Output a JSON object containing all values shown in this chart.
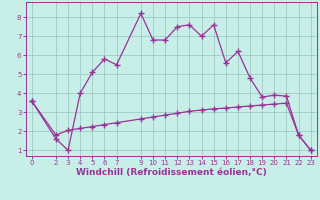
{
  "xlabel": "Windchill (Refroidissement éolien,°C)",
  "background_color": "#c8eee8",
  "grid_color": "#9dccc4",
  "line_color": "#993399",
  "spine_color": "#993399",
  "xlim": [
    -0.5,
    23.5
  ],
  "ylim": [
    0.7,
    8.8
  ],
  "xticks": [
    0,
    2,
    3,
    4,
    5,
    6,
    7,
    9,
    10,
    11,
    12,
    13,
    14,
    15,
    16,
    17,
    18,
    19,
    20,
    21,
    22,
    23
  ],
  "yticks": [
    1,
    2,
    3,
    4,
    5,
    6,
    7,
    8
  ],
  "line1_x": [
    0,
    2,
    3,
    4,
    5,
    6,
    7,
    9,
    10,
    11,
    12,
    13,
    14,
    15,
    16,
    17,
    18,
    19,
    20,
    21,
    22,
    23
  ],
  "line1_y": [
    3.6,
    1.6,
    1.0,
    4.0,
    5.1,
    5.8,
    5.5,
    8.2,
    6.8,
    6.8,
    7.5,
    7.6,
    7.0,
    7.6,
    5.6,
    6.2,
    4.8,
    3.8,
    3.9,
    3.85,
    1.8,
    1.0
  ],
  "line2_x": [
    0,
    2,
    3,
    4,
    5,
    6,
    7,
    9,
    10,
    11,
    12,
    13,
    14,
    15,
    16,
    17,
    18,
    19,
    20,
    21,
    22,
    23
  ],
  "line2_y": [
    3.6,
    1.8,
    2.05,
    2.15,
    2.25,
    2.35,
    2.45,
    2.65,
    2.75,
    2.85,
    2.95,
    3.05,
    3.12,
    3.18,
    3.22,
    3.28,
    3.33,
    3.38,
    3.43,
    3.48,
    1.8,
    1.0
  ],
  "marker": "+",
  "markersize": 4,
  "markeredgewidth": 1.0,
  "linewidth": 0.9,
  "tick_fontsize": 5,
  "xlabel_fontsize": 6.5
}
